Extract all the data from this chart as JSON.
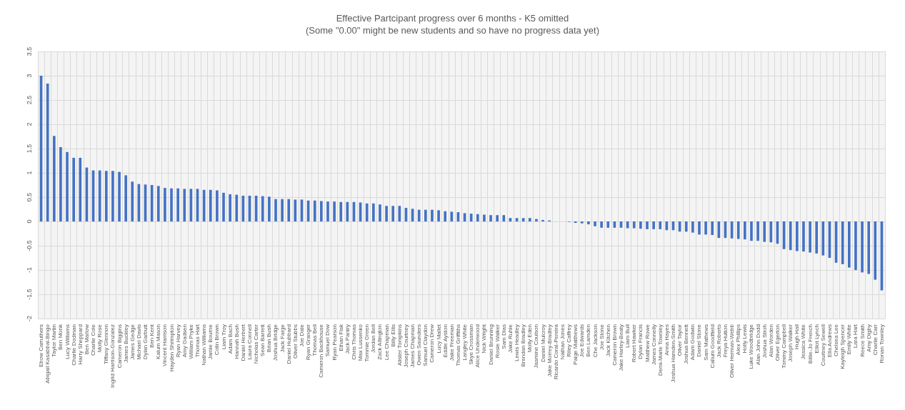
{
  "chart_data": {
    "type": "bar",
    "title": "Effective Partcipant progress over 6 months - K5 omitted",
    "subtitle": "(Some \"0.00\" might be new students and so have no progress data yet)",
    "categories": [
      "Ebow Carruthers",
      "Abigail Kasabbal-Bingo",
      "Taylor Martin",
      "Ben Monk",
      "Lucy Williams",
      "Charlie Dodman",
      "Harry Sheppard",
      "Ben Marlow",
      "Charlie Cole",
      "Molly Rose",
      "Tiffany Glennon",
      "Ingrid Harrison-Gonzalez",
      "Cameron Biggins",
      "James Buckley",
      "James Gedge",
      "Michael Davis",
      "Dylan Garbutt",
      "Ben Kent",
      "Kalum Mason",
      "Vincent Harrison",
      "Hayden Shrimpton",
      "Ryan Harvey",
      "Amy Gadsen",
      "William Pryke",
      "Thomas Hart",
      "Nathan Williams",
      "Jamie Bourne",
      "Colin Brown",
      "Liam Troy",
      "Adam Bach",
      "Hannah Bush",
      "Daniel Herbert",
      "Laura Connell",
      "Nicholas Carter",
      "Sean Barrett",
      "Brian Bush",
      "Joshua Bridge",
      "Jack Farge",
      "Daniel Hubbard",
      "Oliver Stubbs",
      "Joe Dale",
      "Ryan Granger",
      "Thomas Bell",
      "Cameron Backhouse",
      "Samuel Dow",
      "Ryan Pearson",
      "Ethan Fisk",
      "Jack Pantry",
      "Chris Thomas",
      "Max Lussenko",
      "Tommie Green",
      "Jordan Bell",
      "Zack Allington",
      "Lee Chapman",
      "Billy Ellis",
      "Alister Tompkins",
      "Joseph Courtney",
      "James Chapman",
      "Owen Saunders",
      "Samuel Claydon",
      "Cameron Drew",
      "Lucy Mallet",
      "Eddie Ayston",
      "Jake Freeman",
      "Thomas Griffiths",
      "Langley White",
      "Skye Crossman",
      "Alice Underwood",
      "Nick Wright",
      "Daniel Brunning",
      "Rosie Walker",
      "Sam Dias",
      "Jake Ruhle",
      "Lewis Headley",
      "Brendan Bradley",
      "Molly Eden",
      "Jasmine Coulson",
      "Daniel Mulcroy",
      "Jake Morrey-Bradley",
      "Ricardo Coral-Pereira",
      "Nathan Jones",
      "Riley Caffrey",
      "Paige Matthews",
      "Joe Edwards",
      "Ben Lamden",
      "Che Jackson",
      "Joe Stone",
      "Jack Kitchen",
      "Cameron Brown",
      "Jake Harley-Beaty",
      "Liam Bull",
      "Robert Hawker",
      "Dylan Francis",
      "Matthew Rowe",
      "James Connelly",
      "Demi-Marie Townley",
      "Anna Hayes",
      "Joshua Hamden-Smith",
      "Oliver Taylor",
      "Joshua Bennett",
      "Adam Godwin",
      "Daniel Stone",
      "Sam Mathews",
      "Callum Goodfield",
      "Jack Roberts",
      "Freya Hutton",
      "Oliver Herman-Webb",
      "Alex Phillips",
      "Holly Lewis",
      "Luke Woodbridge",
      "Alan John Dodd",
      "Joshua Stroh",
      "Alan Worden",
      "Oliver Egerton",
      "Tommy Campbell",
      "Joseph Walker",
      "Hugh Hall",
      "Jessica White",
      "Billie-Jo French",
      "Elliot Lynch",
      "Courtney Sewell",
      "Ella Andrews",
      "Chelsea Lee",
      "Kayleigh Spencer",
      "Emily White",
      "Lara Hart",
      "Reece Smith",
      "Amy Digby",
      "Charlie Carr",
      "Ronan Townley"
    ],
    "values": [
      3.0,
      2.84,
      1.76,
      1.53,
      1.43,
      1.31,
      1.31,
      1.11,
      1.05,
      1.05,
      1.04,
      1.04,
      1.02,
      0.95,
      0.82,
      0.77,
      0.76,
      0.75,
      0.73,
      0.69,
      0.68,
      0.68,
      0.67,
      0.67,
      0.67,
      0.65,
      0.65,
      0.64,
      0.59,
      0.56,
      0.55,
      0.53,
      0.53,
      0.53,
      0.52,
      0.51,
      0.46,
      0.46,
      0.46,
      0.45,
      0.45,
      0.43,
      0.43,
      0.42,
      0.41,
      0.41,
      0.4,
      0.4,
      0.4,
      0.39,
      0.37,
      0.37,
      0.35,
      0.32,
      0.32,
      0.32,
      0.28,
      0.26,
      0.24,
      0.24,
      0.24,
      0.23,
      0.21,
      0.2,
      0.19,
      0.17,
      0.16,
      0.15,
      0.14,
      0.13,
      0.13,
      0.13,
      0.07,
      0.07,
      0.07,
      0.07,
      0.05,
      0.03,
      0.02,
      0,
      0,
      -0.01,
      -0.03,
      -0.04,
      -0.06,
      -0.1,
      -0.13,
      -0.13,
      -0.13,
      -0.13,
      -0.14,
      -0.14,
      -0.15,
      -0.16,
      -0.16,
      -0.16,
      -0.18,
      -0.18,
      -0.21,
      -0.21,
      -0.23,
      -0.27,
      -0.27,
      -0.28,
      -0.34,
      -0.34,
      -0.35,
      -0.36,
      -0.37,
      -0.4,
      -0.4,
      -0.42,
      -0.43,
      -0.46,
      -0.57,
      -0.59,
      -0.61,
      -0.62,
      -0.64,
      -0.66,
      -0.7,
      -0.75,
      -0.85,
      -0.88,
      -0.95,
      -1.0,
      -1.05,
      -1.08,
      -1.2,
      -1.42
    ],
    "color": "#4472c4",
    "ylim": [
      -2,
      3.5
    ],
    "yticks": [
      -2,
      -1.5,
      -1,
      -0.5,
      0,
      0.5,
      1,
      1.5,
      2,
      2.5,
      3,
      3.5
    ],
    "grid": true
  }
}
